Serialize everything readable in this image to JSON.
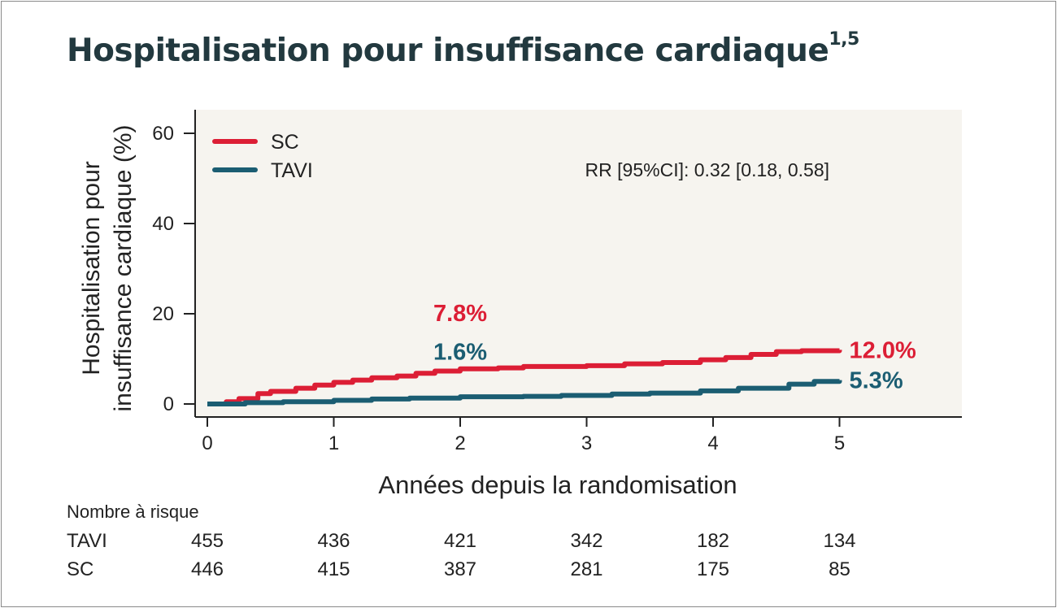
{
  "title": "Hospitalisation pour insuffisance cardiaque",
  "title_sup": "1,5",
  "chart_data": {
    "type": "line",
    "title": "Hospitalisation pour insuffisance cardiaque",
    "xlabel": "Années depuis la randomisation",
    "ylabel_lines": [
      "Hospitalisation pour",
      "insuffisance cardiaque (%)"
    ],
    "xlim": [
      0,
      5.9
    ],
    "ylim": [
      0,
      65
    ],
    "xticks": [
      0,
      1,
      2,
      3,
      4,
      5
    ],
    "yticks": [
      0,
      20,
      40,
      60
    ],
    "legend_position": "top-left",
    "annotation": "RR [95%CI]: 0.32 [0.18, 0.58]",
    "series": [
      {
        "name": "SC",
        "color": "#dc1e35",
        "x": [
          0,
          0.15,
          0.25,
          0.4,
          0.5,
          0.7,
          0.85,
          1.0,
          1.15,
          1.3,
          1.5,
          1.65,
          1.8,
          2.0,
          2.3,
          2.5,
          3.0,
          3.3,
          3.6,
          3.9,
          4.1,
          4.3,
          4.5,
          4.7,
          5.0
        ],
        "y": [
          0,
          0.5,
          1.2,
          2.3,
          2.8,
          3.5,
          4.2,
          4.8,
          5.3,
          5.8,
          6.2,
          6.8,
          7.3,
          7.8,
          8.0,
          8.3,
          8.5,
          8.9,
          9.2,
          9.8,
          10.3,
          11.0,
          11.6,
          11.8,
          12.0
        ]
      },
      {
        "name": "TAVI",
        "color": "#1b5d72",
        "x": [
          0,
          0.3,
          0.6,
          1.0,
          1.3,
          1.6,
          2.0,
          2.5,
          2.8,
          3.2,
          3.5,
          3.9,
          4.2,
          4.6,
          4.8,
          5.0
        ],
        "y": [
          0,
          0.3,
          0.5,
          0.8,
          1.1,
          1.3,
          1.6,
          1.7,
          1.9,
          2.2,
          2.4,
          2.9,
          3.5,
          4.4,
          5.0,
          5.3
        ]
      }
    ],
    "labels": [
      {
        "text": "7.8%",
        "color": "#dc1e35",
        "x": 2,
        "y": 20.2
      },
      {
        "text": "1.6%",
        "color": "#1b5d72",
        "x": 2,
        "y": 11.6
      },
      {
        "text": "12.0%",
        "color": "#dc1e35",
        "x": 5.0,
        "y": 12.0,
        "anchor": "right"
      },
      {
        "text": "5.3%",
        "color": "#1b5d72",
        "x": 5.0,
        "y": 5.3,
        "anchor": "right"
      }
    ]
  },
  "risk_table": {
    "title": "Nombre à risque",
    "times": [
      0,
      1,
      2,
      3,
      4,
      5
    ],
    "rows": [
      {
        "label": "TAVI",
        "values": [
          "455",
          "436",
          "421",
          "342",
          "182",
          "134"
        ]
      },
      {
        "label": "SC",
        "values": [
          "446",
          "415",
          "387",
          "281",
          "175",
          "85"
        ]
      }
    ]
  }
}
